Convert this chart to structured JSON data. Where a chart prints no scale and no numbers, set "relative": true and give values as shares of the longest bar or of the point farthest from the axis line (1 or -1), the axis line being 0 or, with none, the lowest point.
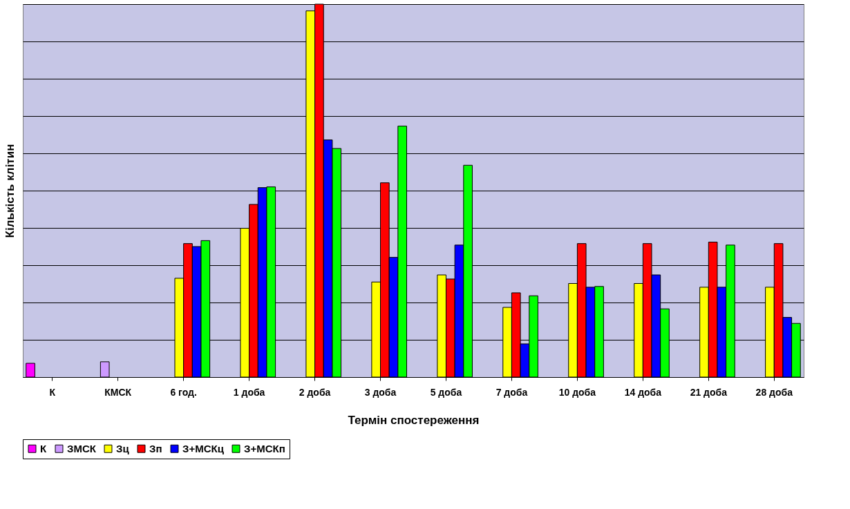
{
  "chart_data": {
    "type": "bar",
    "relative": true,
    "xlabel": "Термін спостереження",
    "ylabel": "Кількість  клітин",
    "grid": "y",
    "legend": "bottom",
    "categories": [
      "К",
      "КМСК",
      "6 год.",
      "1 доба",
      "2 доба",
      "3 доба",
      "5 доба",
      "7 доба",
      "10 доба",
      "14 доба",
      "21 доба",
      "28 доба"
    ],
    "series": [
      {
        "name": "К",
        "color": "#ff00ff",
        "values": [
          0.037,
          null,
          null,
          null,
          null,
          null,
          null,
          null,
          null,
          null,
          null,
          null
        ]
      },
      {
        "name": "ЗМСК",
        "color": "#cc99ff",
        "values": [
          null,
          0.041,
          null,
          null,
          null,
          null,
          null,
          null,
          null,
          null,
          null,
          null
        ]
      },
      {
        "name": "Зц",
        "color": "#ffff00",
        "values": [
          null,
          null,
          0.265,
          0.399,
          0.982,
          0.255,
          0.274,
          0.187,
          0.251,
          0.251,
          0.241,
          0.241
        ]
      },
      {
        "name": "Зп",
        "color": "#ff0000",
        "values": [
          null,
          null,
          0.358,
          0.463,
          1,
          0.521,
          0.263,
          0.226,
          0.358,
          0.358,
          0.362,
          0.358
        ]
      },
      {
        "name": "З+МСКц",
        "color": "#0000ff",
        "values": [
          null,
          null,
          0.35,
          0.508,
          0.636,
          0.321,
          0.354,
          0.089,
          0.241,
          0.274,
          0.241,
          0.16
        ]
      },
      {
        "name": "З+МСКп",
        "color": "#00ff00",
        "values": [
          null,
          null,
          0.366,
          0.51,
          0.613,
          0.673,
          0.568,
          0.218,
          0.243,
          0.183,
          0.354,
          0.144
        ]
      }
    ]
  }
}
